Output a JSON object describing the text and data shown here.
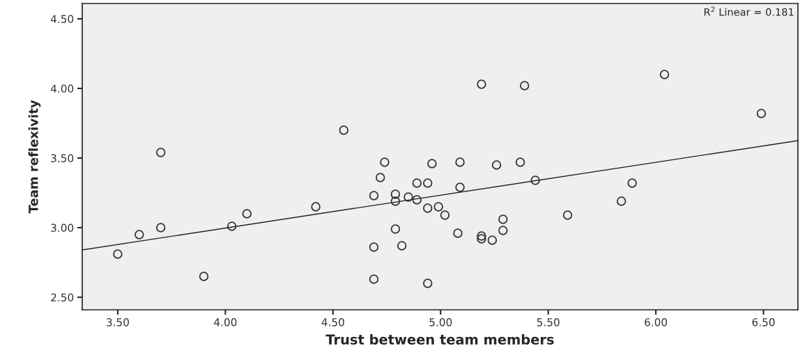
{
  "chart_data": {
    "type": "scatter",
    "xlabel": "Trust between team members",
    "ylabel": "Team reflexivity",
    "annotations": [
      "R$^{2}$ Linear = 0.181"
    ],
    "grid": false,
    "xlim": [
      3.335,
      6.66
    ],
    "ylim": [
      2.41,
      4.61
    ],
    "xticks": [
      {
        "value": 3.5,
        "label": "3.50"
      },
      {
        "value": 4.0,
        "label": "4.00"
      },
      {
        "value": 4.5,
        "label": "4.50"
      },
      {
        "value": 5.0,
        "label": "5.00"
      },
      {
        "value": 5.5,
        "label": "5.50"
      },
      {
        "value": 6.0,
        "label": "6.00"
      },
      {
        "value": 6.5,
        "label": "6.50"
      }
    ],
    "yticks": [
      {
        "value": 2.5,
        "label": "2.50"
      },
      {
        "value": 3.0,
        "label": "3.00"
      },
      {
        "value": 3.5,
        "label": "3.50"
      },
      {
        "value": 4.0,
        "label": "4.00"
      },
      {
        "value": 4.5,
        "label": "4.50"
      }
    ],
    "series": [
      {
        "marker": "circle",
        "color": "#333333",
        "x": [
          3.5,
          3.6,
          3.7,
          3.7,
          3.9,
          4.03,
          4.1,
          4.42,
          4.55,
          4.69,
          4.69,
          4.69,
          4.72,
          4.74,
          4.79,
          4.79,
          4.79,
          4.82,
          4.85,
          4.89,
          4.89,
          4.94,
          4.96,
          4.94,
          4.94,
          4.99,
          5.02,
          5.09,
          5.09,
          5.08,
          5.19,
          5.19,
          5.19,
          5.24,
          5.26,
          5.29,
          5.29,
          5.37,
          5.39,
          5.44,
          5.59,
          5.84,
          5.89,
          6.04,
          6.49
        ],
        "values": [
          2.81,
          2.95,
          3.54,
          3.0,
          2.65,
          3.01,
          3.1,
          3.15,
          3.7,
          3.23,
          2.86,
          2.63,
          3.36,
          3.47,
          3.24,
          3.19,
          2.99,
          2.87,
          3.22,
          3.32,
          3.2,
          3.32,
          3.46,
          3.14,
          2.6,
          3.15,
          3.09,
          3.47,
          3.29,
          2.96,
          4.03,
          2.94,
          2.92,
          2.91,
          3.45,
          3.06,
          2.98,
          3.47,
          4.02,
          3.34,
          3.09,
          3.19,
          3.32,
          4.1,
          3.82
        ]
      },
      {
        "type": "line",
        "color": "#222222",
        "x": [
          3.335,
          6.66
        ],
        "values": [
          2.84,
          3.625
        ]
      }
    ]
  }
}
